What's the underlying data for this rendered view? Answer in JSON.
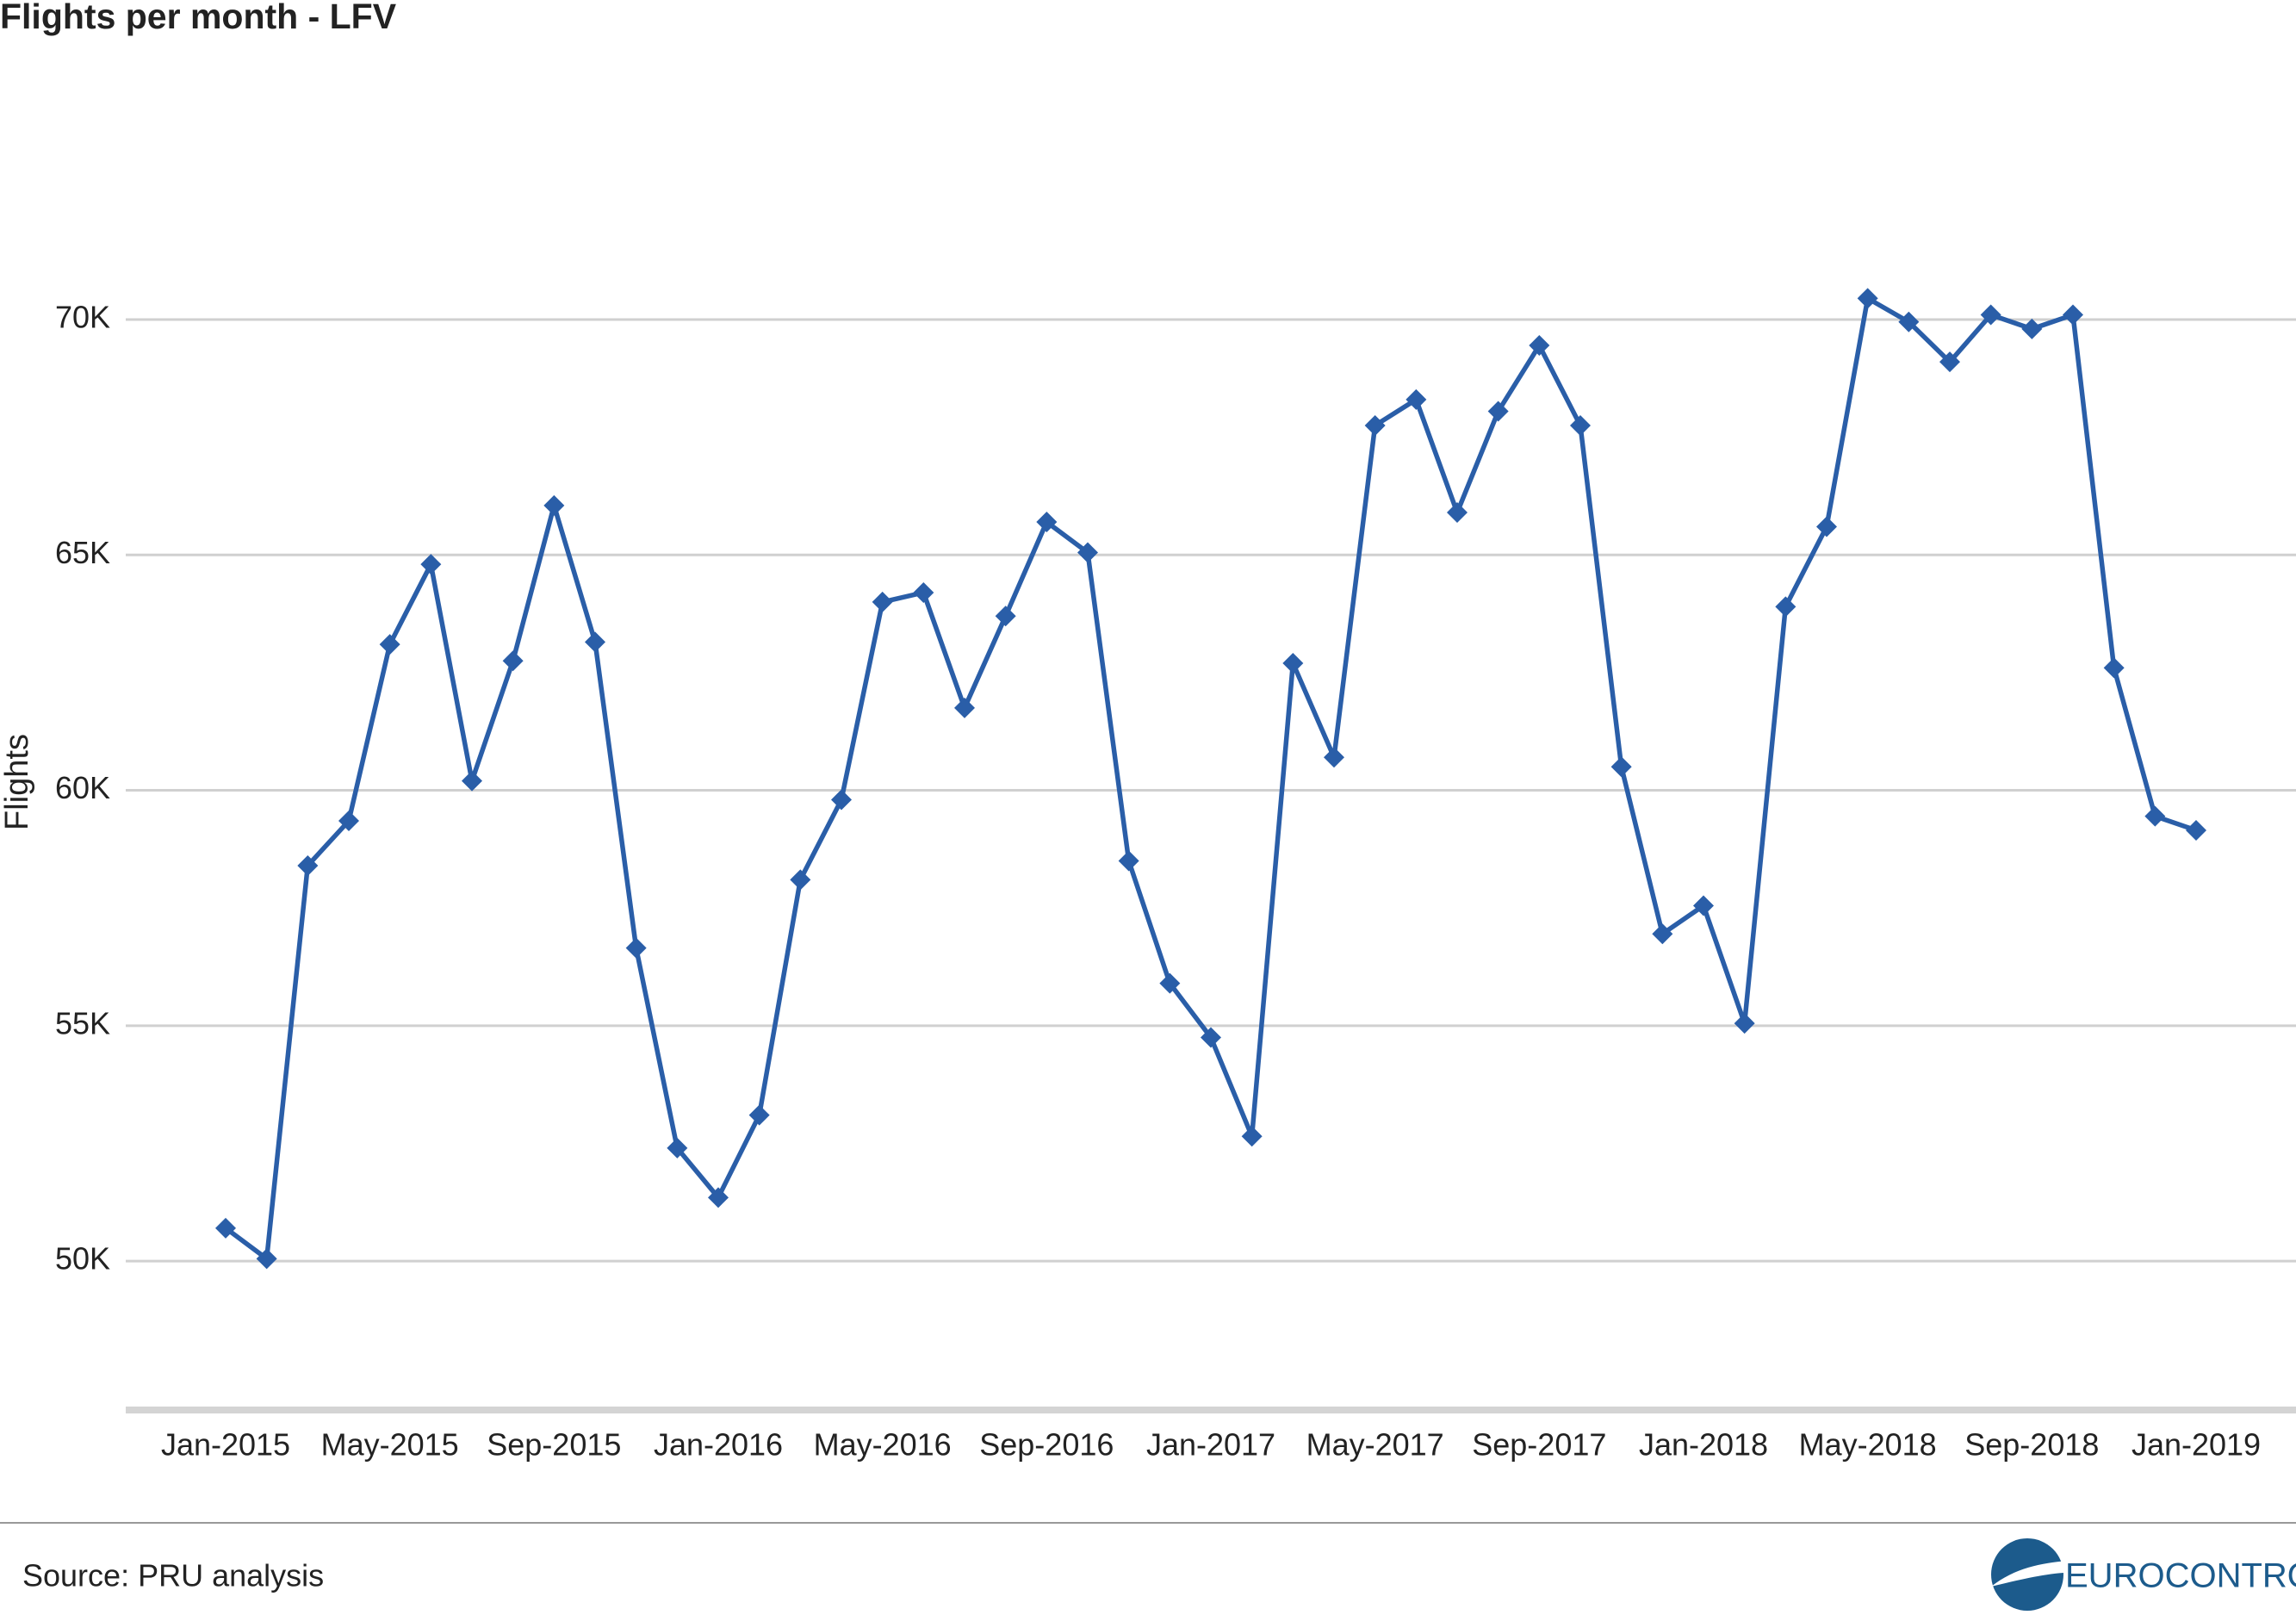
{
  "chart_data": {
    "type": "line",
    "title": "Flights per month - LFV",
    "y_label": "Flights",
    "source": "Source: PRU analysis",
    "logo": "EUROCONTROL",
    "categories": [
      "Jan-2015",
      null,
      null,
      null,
      "May-2015",
      null,
      null,
      null,
      "Sep-2015",
      null,
      null,
      null,
      "Jan-2016",
      null,
      null,
      null,
      "May-2016",
      null,
      null,
      null,
      "Sep-2016",
      null,
      null,
      null,
      "Jan-2017",
      null,
      null,
      null,
      "May-2017",
      null,
      null,
      null,
      "Sep-2017",
      null,
      null,
      null,
      "Jan-2018",
      null,
      null,
      null,
      "May-2018",
      null,
      null,
      null,
      "Sep-2018",
      null,
      null,
      null,
      "Jan-2019"
    ],
    "series": [
      {
        "name": "Flights",
        "color": "#2a5ea8",
        "values": [
          50700,
          50050,
          58400,
          59350,
          63100,
          64800,
          60200,
          62750,
          66050,
          63150,
          56650,
          52400,
          51350,
          53100,
          58100,
          59800,
          64000,
          64200,
          61750,
          63700,
          65700,
          65050,
          58500,
          55900,
          54750,
          52650,
          62700,
          60700,
          67750,
          68300,
          65900,
          68050,
          69450,
          67750,
          60500,
          56950,
          57550,
          55050,
          63900,
          65600,
          70450,
          69950,
          69100,
          70100,
          69800,
          70100,
          62600,
          59450,
          59150
        ]
      }
    ],
    "ylim": [
      46800,
      73000
    ],
    "yticks": [
      {
        "value": 50000,
        "label": "50K"
      },
      {
        "value": 55000,
        "label": "55K"
      },
      {
        "value": 60000,
        "label": "60K"
      },
      {
        "value": 65000,
        "label": "65K"
      },
      {
        "value": 70000,
        "label": "70K"
      }
    ],
    "grid": true
  }
}
